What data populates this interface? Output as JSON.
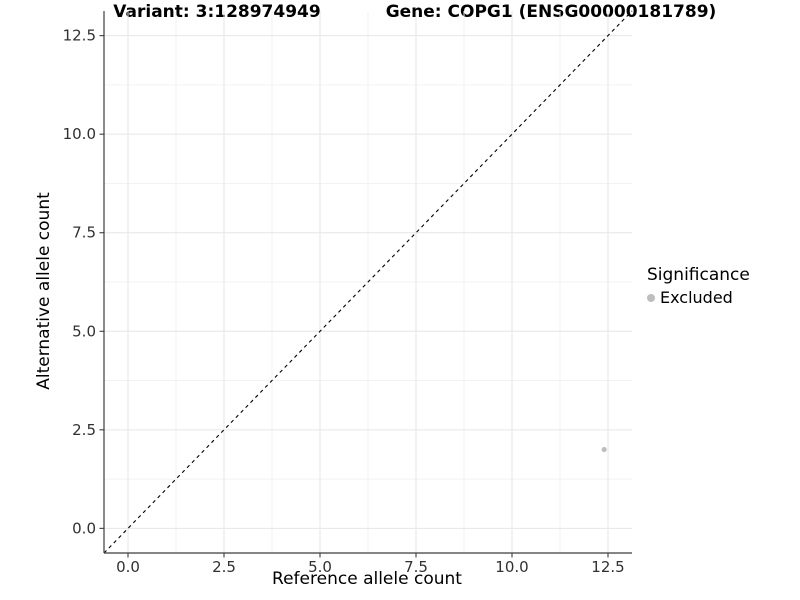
{
  "header": {
    "variant_title": "Variant: 3:128974949",
    "gene_title": "Gene: COPG1 (ENSG00000181789)"
  },
  "chart_data": {
    "type": "scatter",
    "title_left": "Variant: 3:128974949",
    "title_right": "Gene: COPG1 (ENSG00000181789)",
    "xlabel": "Reference allele count",
    "ylabel": "Alternative allele count",
    "xlim": [
      -0.625,
      13.125
    ],
    "ylim": [
      -0.625,
      13.125
    ],
    "x_ticks": [
      0.0,
      2.5,
      5.0,
      7.5,
      10.0,
      12.5
    ],
    "x_tick_labels": [
      "0.0",
      "2.5",
      "5.0",
      "7.5",
      "10.0",
      "12.5"
    ],
    "y_ticks": [
      0.0,
      2.5,
      5.0,
      7.5,
      10.0,
      12.5
    ],
    "y_tick_labels": [
      "0.0",
      "2.5",
      "5.0",
      "7.5",
      "10.0",
      "12.5"
    ],
    "minor_ticks": [
      1.25,
      3.75,
      6.25,
      8.75,
      11.25
    ],
    "grid": "major+minor",
    "reference_line": {
      "type": "identity-diagonal",
      "style": "dashed",
      "color": "#000000"
    },
    "series": [
      {
        "name": "Excluded",
        "color": "#bebebe",
        "points": [
          {
            "x": 12.4,
            "y": 2.0
          }
        ]
      }
    ],
    "legend": {
      "title": "Significance",
      "position": "right",
      "items": [
        {
          "label": "Excluded",
          "color": "#bebebe"
        }
      ]
    }
  },
  "colors": {
    "background": "#ffffff",
    "grid_major": "#e6e6e6",
    "grid_minor": "#f2f2f2",
    "axis_line": "#3c3c3c",
    "tick_text": "#303030",
    "point": "#bebebe",
    "dashed_line": "#000000"
  }
}
